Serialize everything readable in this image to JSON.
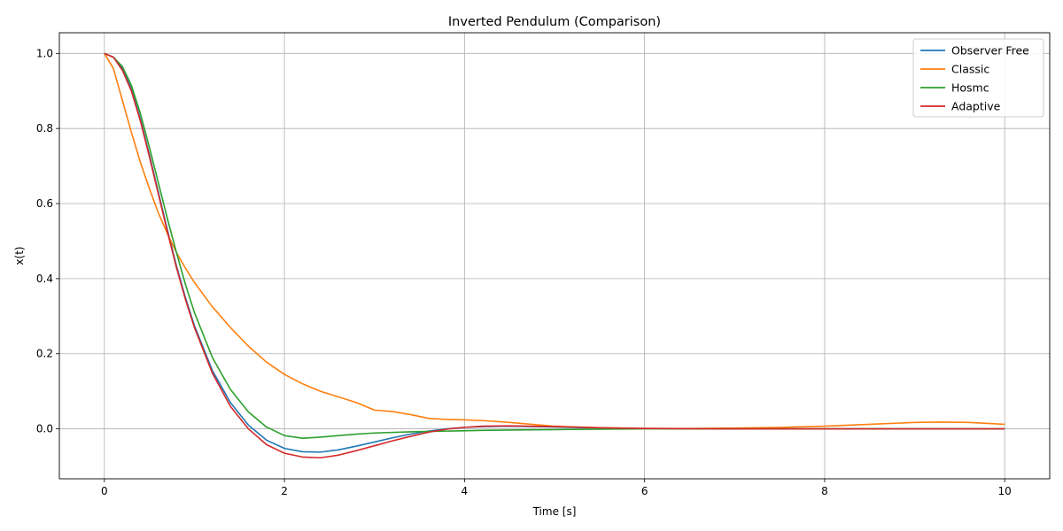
{
  "chart_data": {
    "type": "line",
    "title": "Inverted Pendulum (Comparison)",
    "xlabel": "Time [s]",
    "ylabel": "x(t)",
    "xlim": [
      -0.5,
      10.5
    ],
    "ylim": [
      -0.133,
      1.055
    ],
    "xticks": [
      0,
      2,
      4,
      6,
      8,
      10
    ],
    "xtick_labels": [
      "0",
      "2",
      "4",
      "6",
      "8",
      "10"
    ],
    "yticks": [
      0.0,
      0.2,
      0.4,
      0.6,
      0.8,
      1.0
    ],
    "ytick_labels": [
      "0.0",
      "0.2",
      "0.4",
      "0.6",
      "0.8",
      "1.0"
    ],
    "grid": true,
    "legend_position": "upper right",
    "series": [
      {
        "name": "Observer Free",
        "color": "#1f77b4",
        "points": [
          [
            0,
            1.0
          ],
          [
            0.1,
            0.99
          ],
          [
            0.2,
            0.96
          ],
          [
            0.3,
            0.905
          ],
          [
            0.4,
            0.825
          ],
          [
            0.5,
            0.73
          ],
          [
            0.6,
            0.63
          ],
          [
            0.7,
            0.53
          ],
          [
            0.8,
            0.435
          ],
          [
            0.9,
            0.35
          ],
          [
            1.0,
            0.275
          ],
          [
            1.2,
            0.155
          ],
          [
            1.4,
            0.07
          ],
          [
            1.6,
            0.01
          ],
          [
            1.8,
            -0.03
          ],
          [
            2.0,
            -0.052
          ],
          [
            2.2,
            -0.061
          ],
          [
            2.4,
            -0.062
          ],
          [
            2.6,
            -0.056
          ],
          [
            2.8,
            -0.046
          ],
          [
            3.0,
            -0.035
          ],
          [
            3.2,
            -0.024
          ],
          [
            3.4,
            -0.014
          ],
          [
            3.6,
            -0.006
          ],
          [
            3.8,
            0.0
          ],
          [
            4.0,
            0.004
          ],
          [
            4.2,
            0.006
          ],
          [
            4.5,
            0.007
          ],
          [
            5.0,
            0.005
          ],
          [
            5.5,
            0.002
          ],
          [
            6.0,
            0.001
          ],
          [
            7.0,
            0.0
          ],
          [
            8.0,
            0.0
          ],
          [
            9.0,
            0.0
          ],
          [
            10.0,
            0.0
          ]
        ]
      },
      {
        "name": "Classic",
        "color": "#ff7f0e",
        "points": [
          [
            0,
            1.0
          ],
          [
            0.1,
            0.96
          ],
          [
            0.2,
            0.875
          ],
          [
            0.3,
            0.79
          ],
          [
            0.4,
            0.71
          ],
          [
            0.5,
            0.64
          ],
          [
            0.6,
            0.575
          ],
          [
            0.7,
            0.52
          ],
          [
            0.8,
            0.47
          ],
          [
            0.9,
            0.428
          ],
          [
            1.0,
            0.39
          ],
          [
            1.2,
            0.325
          ],
          [
            1.4,
            0.27
          ],
          [
            1.6,
            0.22
          ],
          [
            1.8,
            0.178
          ],
          [
            2.0,
            0.145
          ],
          [
            2.2,
            0.12
          ],
          [
            2.4,
            0.1
          ],
          [
            2.6,
            0.085
          ],
          [
            2.8,
            0.07
          ],
          [
            3.0,
            0.05
          ],
          [
            3.2,
            0.046
          ],
          [
            3.4,
            0.038
          ],
          [
            3.6,
            0.028
          ],
          [
            3.8,
            0.025
          ],
          [
            4.0,
            0.024
          ],
          [
            4.2,
            0.022
          ],
          [
            4.5,
            0.017
          ],
          [
            4.8,
            0.011
          ],
          [
            5.0,
            0.007
          ],
          [
            5.5,
            0.003
          ],
          [
            6.0,
            0.001
          ],
          [
            6.5,
            0.001
          ],
          [
            7.0,
            0.002
          ],
          [
            7.5,
            0.004
          ],
          [
            8.0,
            0.007
          ],
          [
            8.5,
            0.012
          ],
          [
            9.0,
            0.017
          ],
          [
            9.3,
            0.018
          ],
          [
            9.6,
            0.017
          ],
          [
            10.0,
            0.012
          ]
        ]
      },
      {
        "name": "Hosmc",
        "color": "#2ca02c",
        "points": [
          [
            0,
            1.0
          ],
          [
            0.1,
            0.99
          ],
          [
            0.2,
            0.965
          ],
          [
            0.3,
            0.915
          ],
          [
            0.4,
            0.84
          ],
          [
            0.5,
            0.75
          ],
          [
            0.6,
            0.655
          ],
          [
            0.7,
            0.56
          ],
          [
            0.8,
            0.47
          ],
          [
            0.9,
            0.385
          ],
          [
            1.0,
            0.31
          ],
          [
            1.2,
            0.19
          ],
          [
            1.4,
            0.105
          ],
          [
            1.6,
            0.045
          ],
          [
            1.8,
            0.005
          ],
          [
            2.0,
            -0.018
          ],
          [
            2.2,
            -0.025
          ],
          [
            2.4,
            -0.022
          ],
          [
            2.6,
            -0.018
          ],
          [
            2.8,
            -0.014
          ],
          [
            3.0,
            -0.011
          ],
          [
            3.4,
            -0.008
          ],
          [
            3.8,
            -0.006
          ],
          [
            4.2,
            -0.004
          ],
          [
            4.6,
            -0.003
          ],
          [
            5.0,
            -0.002
          ],
          [
            5.5,
            -0.001
          ],
          [
            6.0,
            0.0
          ],
          [
            7.0,
            0.0
          ],
          [
            8.0,
            0.0
          ],
          [
            9.0,
            0.0
          ],
          [
            10.0,
            0.0
          ]
        ]
      },
      {
        "name": "Adaptive",
        "color": "#d62728",
        "points": [
          [
            0,
            1.0
          ],
          [
            0.1,
            0.99
          ],
          [
            0.2,
            0.955
          ],
          [
            0.3,
            0.9
          ],
          [
            0.4,
            0.82
          ],
          [
            0.5,
            0.725
          ],
          [
            0.6,
            0.625
          ],
          [
            0.7,
            0.525
          ],
          [
            0.8,
            0.43
          ],
          [
            0.9,
            0.345
          ],
          [
            1.0,
            0.27
          ],
          [
            1.2,
            0.148
          ],
          [
            1.4,
            0.06
          ],
          [
            1.6,
            0.0
          ],
          [
            1.8,
            -0.042
          ],
          [
            2.0,
            -0.065
          ],
          [
            2.2,
            -0.075
          ],
          [
            2.4,
            -0.077
          ],
          [
            2.6,
            -0.07
          ],
          [
            2.8,
            -0.058
          ],
          [
            3.0,
            -0.045
          ],
          [
            3.2,
            -0.032
          ],
          [
            3.4,
            -0.02
          ],
          [
            3.6,
            -0.009
          ],
          [
            3.8,
            -0.001
          ],
          [
            4.0,
            0.004
          ],
          [
            4.2,
            0.007
          ],
          [
            4.5,
            0.008
          ],
          [
            5.0,
            0.006
          ],
          [
            5.5,
            0.003
          ],
          [
            6.0,
            0.001
          ],
          [
            7.0,
            0.0
          ],
          [
            8.0,
            0.0
          ],
          [
            9.0,
            0.0
          ],
          [
            10.0,
            0.0
          ]
        ]
      }
    ]
  }
}
